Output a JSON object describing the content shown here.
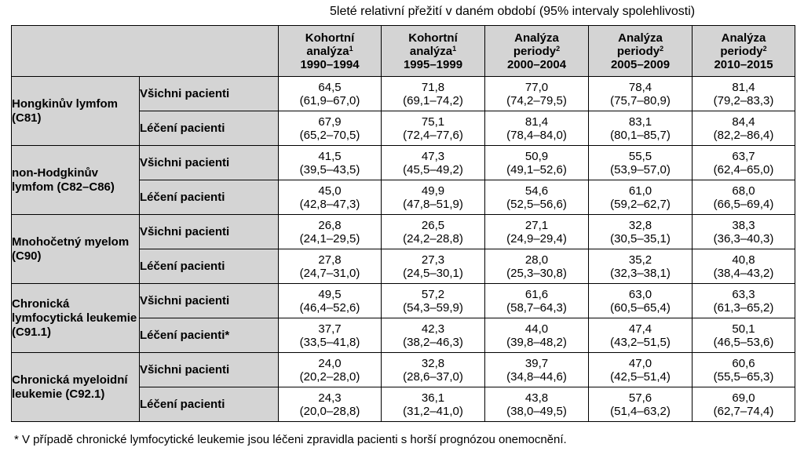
{
  "title": "5leté relativní přežití v daném období (95% intervaly spolehlivosti)",
  "columns": [
    {
      "line1": "Kohortní",
      "line2": "analýza",
      "sup": "1",
      "years": "1990–1994"
    },
    {
      "line1": "Kohortní",
      "line2": "analýza",
      "sup": "1",
      "years": "1995–1999"
    },
    {
      "line1": "Analýza",
      "line2": "periody",
      "sup": "2",
      "years": "2000–2004"
    },
    {
      "line1": "Analýza",
      "line2": "periody",
      "sup": "2",
      "years": "2005–2009"
    },
    {
      "line1": "Analýza",
      "line2": "periody",
      "sup": "2",
      "years": "2010–2015"
    }
  ],
  "groups": [
    {
      "name": "Hongkinův lymfom (C81)",
      "rows": [
        {
          "label": "Všichni pacienti",
          "values": [
            "64,5",
            "71,8",
            "77,0",
            "78,4",
            "81,4"
          ],
          "ci": [
            "(61,9–67,0)",
            "(69,1–74,2)",
            "(74,2–79,5)",
            "(75,7–80,9)",
            "(79,2–83,3)"
          ]
        },
        {
          "label": "Léčení pacienti",
          "values": [
            "67,9",
            "75,1",
            "81,4",
            "83,1",
            "84,4"
          ],
          "ci": [
            "(65,2–70,5)",
            "(72,4–77,6)",
            "(78,4–84,0)",
            "(80,1–85,7)",
            "(82,2–86,4)"
          ]
        }
      ]
    },
    {
      "name": "non-Hodgkinův lymfom (C82–C86)",
      "rows": [
        {
          "label": "Všichni pacienti",
          "values": [
            "41,5",
            "47,3",
            "50,9",
            "55,5",
            "63,7"
          ],
          "ci": [
            "(39,5–43,5)",
            "(45,5–49,2)",
            "(49,1–52,6)",
            "(53,9–57,0)",
            "(62,4–65,0)"
          ]
        },
        {
          "label": "Léčení pacienti",
          "values": [
            "45,0",
            "49,9",
            "54,6",
            "61,0",
            "68,0"
          ],
          "ci": [
            "(42,8–47,3)",
            "(47,8–51,9)",
            "(52,5–56,6)",
            "(59,2–62,7)",
            "(66,5–69,4)"
          ]
        }
      ]
    },
    {
      "name": "Mnohočetný myelom (C90)",
      "rows": [
        {
          "label": "Všichni pacienti",
          "values": [
            "26,8",
            "26,5",
            "27,1",
            "32,8",
            "38,3"
          ],
          "ci": [
            "(24,1–29,5)",
            "(24,2–28,8)",
            "(24,9–29,4)",
            "(30,5–35,1)",
            "(36,3–40,3)"
          ]
        },
        {
          "label": "Léčení pacienti",
          "values": [
            "27,8",
            "27,3",
            "28,0",
            "35,2",
            "40,8"
          ],
          "ci": [
            "(24,7–31,0)",
            "(24,5–30,1)",
            "(25,3–30,8)",
            "(32,3–38,1)",
            "(38,4–43,2)"
          ]
        }
      ]
    },
    {
      "name": "Chronická lymfocytická leukemie (C91.1)",
      "rows": [
        {
          "label": "Všichni pacienti",
          "values": [
            "49,5",
            "57,2",
            "61,6",
            "63,0",
            "63,3"
          ],
          "ci": [
            "(46,4–52,6)",
            "(54,3–59,9)",
            "(58,7–64,3)",
            "(60,5–65,4)",
            "(61,3–65,2)"
          ]
        },
        {
          "label": "Léčení pacienti*",
          "values": [
            "37,7",
            "42,3",
            "44,0",
            "47,4",
            "50,1"
          ],
          "ci": [
            "(33,5–41,8)",
            "(38,2–46,3)",
            "(39,8–48,2)",
            "(43,2–51,5)",
            "(46,5–53,6)"
          ]
        }
      ]
    },
    {
      "name": "Chronická myeloidní leukemie (C92.1)",
      "rows": [
        {
          "label": "Všichni pacienti",
          "values": [
            "24,0",
            "32,8",
            "39,7",
            "47,0",
            "60,6"
          ],
          "ci": [
            "(20,2–28,0)",
            "(28,6–37,0)",
            "(34,8–44,6)",
            "(42,5–51,4)",
            "(55,5–65,3)"
          ]
        },
        {
          "label": "Léčení pacienti",
          "values": [
            "24,3",
            "36,1",
            "43,8",
            "57,6",
            "69,0"
          ],
          "ci": [
            "(20,0–28,8)",
            "(31,2–41,0)",
            "(38,0–49,5)",
            "(51,4–63,2)",
            "(62,7–74,4)"
          ]
        }
      ]
    }
  ],
  "footnote": "* V případě chronické lymfocytické leukemie jsou léčeni zpravidla pacienti s horší prognózou onemocnění."
}
